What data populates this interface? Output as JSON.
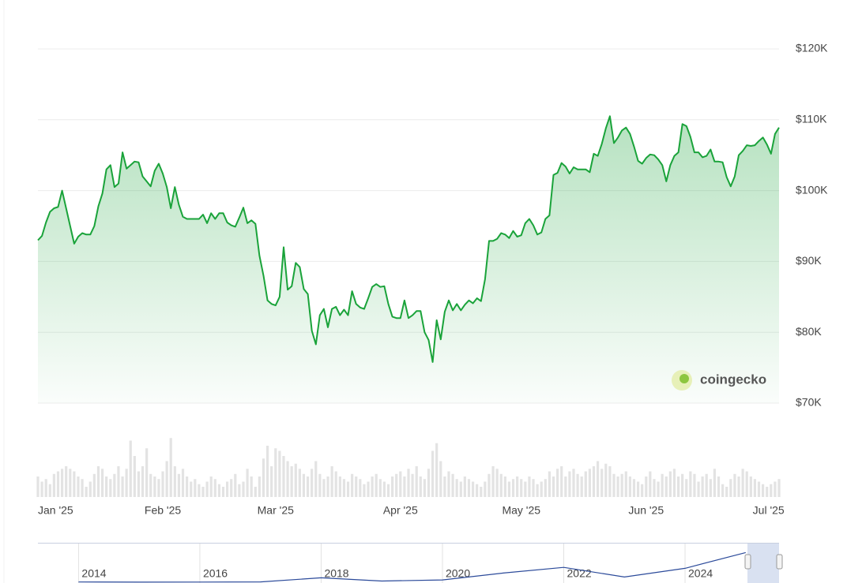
{
  "chart_data": {
    "type": "area-line",
    "color": "#1aa33a",
    "grid": true,
    "watermark": "coingecko",
    "categories": [
      "Jan '25",
      null,
      null,
      null,
      null,
      null,
      null,
      null,
      null,
      null,
      null,
      null,
      null,
      null,
      null,
      null,
      null,
      null,
      null,
      null,
      null,
      null,
      null,
      null,
      null,
      null,
      null,
      null,
      null,
      null,
      null,
      "Feb '25",
      null,
      null,
      null,
      null,
      null,
      null,
      null,
      null,
      null,
      null,
      null,
      null,
      null,
      null,
      null,
      null,
      null,
      null,
      null,
      null,
      null,
      null,
      null,
      null,
      null,
      null,
      null,
      "Mar '25",
      null,
      null,
      null,
      null,
      null,
      null,
      null,
      null,
      null,
      null,
      null,
      null,
      null,
      null,
      null,
      null,
      null,
      null,
      null,
      null,
      null,
      null,
      null,
      null,
      null,
      null,
      null,
      null,
      null,
      null,
      "Apr '25",
      null,
      null,
      null,
      null,
      null,
      null,
      null,
      null,
      null,
      null,
      null,
      null,
      null,
      null,
      null,
      null,
      null,
      null,
      null,
      null,
      null,
      null,
      null,
      null,
      null,
      null,
      null,
      null,
      null,
      "May '25",
      null,
      null,
      null,
      null,
      null,
      null,
      null,
      null,
      null,
      null,
      null,
      null,
      null,
      null,
      null,
      null,
      null,
      null,
      null,
      null,
      null,
      null,
      null,
      null,
      null,
      null,
      null,
      null,
      null,
      null,
      "Jun '25",
      null,
      null,
      null,
      null,
      null,
      null,
      null,
      null,
      null,
      null,
      null,
      null,
      null,
      null,
      null,
      null,
      null,
      null,
      null,
      null,
      null,
      null,
      null,
      null,
      null,
      null,
      null,
      null,
      null,
      "Jul '25",
      null,
      null,
      null
    ],
    "values": [
      93000,
      93600,
      95500,
      97000,
      97500,
      97700,
      100000,
      97500,
      95000,
      92500,
      93500,
      94000,
      93800,
      93800,
      95000,
      97800,
      99600,
      103000,
      103600,
      100500,
      101000,
      105400,
      103100,
      103600,
      104100,
      104000,
      102000,
      101300,
      100600,
      102800,
      103800,
      102400,
      100500,
      97500,
      100500,
      98000,
      96300,
      96000,
      96000,
      96000,
      96000,
      96600,
      95400,
      96800,
      96000,
      96800,
      96800,
      95500,
      95100,
      94900,
      96200,
      97600,
      95400,
      95800,
      95300,
      90800,
      88000,
      84500,
      84000,
      83800,
      85000,
      92000,
      86000,
      86500,
      89800,
      89200,
      86100,
      85400,
      80200,
      78300,
      82400,
      83300,
      80700,
      83300,
      83600,
      82400,
      83200,
      82400,
      85800,
      84000,
      83500,
      83300,
      84800,
      86400,
      86800,
      86400,
      86500,
      84000,
      82200,
      82000,
      82000,
      84500,
      82000,
      82400,
      83000,
      83000,
      80000,
      78900,
      75800,
      81700,
      79000,
      82900,
      84500,
      83100,
      84000,
      83100,
      83900,
      84500,
      84100,
      84800,
      84400,
      87500,
      92900,
      92900,
      93200,
      94000,
      93800,
      93300,
      94300,
      93500,
      93700,
      95400,
      96000,
      95100,
      93800,
      94100,
      96000,
      96500,
      102200,
      102500,
      103900,
      103400,
      102400,
      103300,
      103000,
      103000,
      103000,
      102600,
      105200,
      104900,
      106600,
      108800,
      110500,
      106700,
      107500,
      108500,
      108900,
      108000,
      106200,
      104200,
      103800,
      104600,
      105100,
      105000,
      104400,
      103600,
      101300,
      103600,
      104900,
      105400,
      109400,
      109100,
      107600,
      105400,
      105400,
      104700,
      104900,
      105800,
      104100,
      104100,
      104000,
      101900,
      100600,
      102000,
      105000,
      105600,
      106400,
      106300,
      106400,
      107000,
      107500,
      106500,
      105200,
      108000,
      108900
    ],
    "ylim": [
      70000,
      120000
    ],
    "yticks": [
      {
        "value": 70000,
        "label": "$70K"
      },
      {
        "value": 80000,
        "label": "$80K"
      },
      {
        "value": 90000,
        "label": "$90K"
      },
      {
        "value": 100000,
        "label": "$100K"
      },
      {
        "value": 110000,
        "label": "$110K"
      },
      {
        "value": 120000,
        "label": "$120K"
      }
    ],
    "volume": {
      "color": "#e3e3e3",
      "ylim": [
        0,
        120
      ],
      "values": [
        40,
        30,
        35,
        25,
        45,
        50,
        55,
        60,
        55,
        50,
        40,
        35,
        20,
        30,
        45,
        60,
        55,
        40,
        35,
        45,
        60,
        40,
        55,
        110,
        80,
        50,
        60,
        95,
        45,
        40,
        35,
        50,
        70,
        115,
        60,
        45,
        55,
        40,
        30,
        35,
        25,
        20,
        30,
        40,
        35,
        25,
        20,
        30,
        35,
        45,
        25,
        30,
        55,
        40,
        20,
        40,
        75,
        100,
        60,
        95,
        90,
        80,
        70,
        60,
        65,
        55,
        45,
        40,
        55,
        70,
        45,
        35,
        40,
        60,
        50,
        40,
        35,
        30,
        45,
        40,
        35,
        25,
        30,
        40,
        45,
        35,
        30,
        25,
        40,
        45,
        50,
        40,
        55,
        45,
        60,
        40,
        35,
        55,
        90,
        105,
        70,
        40,
        50,
        45,
        35,
        30,
        40,
        35,
        30,
        25,
        20,
        30,
        45,
        60,
        55,
        45,
        40,
        30,
        35,
        40,
        35,
        30,
        40,
        35,
        25,
        30,
        35,
        50,
        40,
        55,
        60,
        40,
        50,
        55,
        45,
        40,
        50,
        55,
        60,
        70,
        55,
        65,
        60,
        45,
        40,
        45,
        50,
        40,
        35,
        30,
        25,
        40,
        50,
        35,
        30,
        45,
        40,
        50,
        55,
        40,
        45,
        35,
        50,
        45,
        30,
        40,
        45,
        35,
        55,
        40,
        25,
        20,
        35,
        45,
        40,
        55,
        50,
        40,
        35,
        30,
        25,
        20,
        25,
        30,
        35
      ]
    },
    "navigator": {
      "color": "#2b4a9a",
      "x": [
        2014,
        2015,
        2016,
        2017,
        2018,
        2019,
        2020,
        2021,
        2022,
        2023,
        2024,
        2025
      ],
      "values": [
        770,
        315,
        430,
        1000,
        14000,
        3700,
        7200,
        29000,
        47000,
        16500,
        44000,
        94000
      ],
      "xlim": [
        2013.33,
        2025.55
      ],
      "ylim": [
        0,
        120000
      ],
      "xticks": [
        2014,
        2016,
        2018,
        2020,
        2022,
        2024
      ]
    }
  }
}
